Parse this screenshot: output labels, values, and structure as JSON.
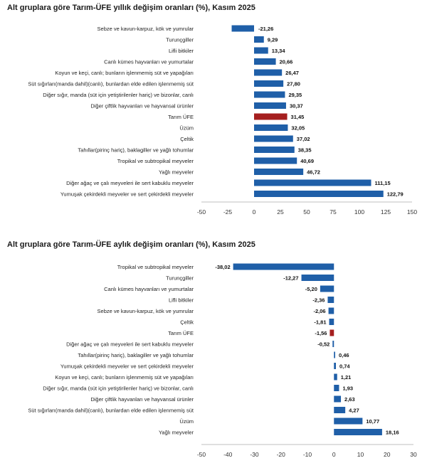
{
  "colors": {
    "bar": "#1f5fa8",
    "highlight": "#a51f1f",
    "axis": "#bfbfbf"
  },
  "chart_data": [
    {
      "type": "bar",
      "orientation": "horizontal",
      "title": "Alt gruplara göre Tarım-ÜFE yıllık değişim oranları (%), Kasım 2025",
      "categories": [
        "Sebze ve kavun-karpuz, kök ve yumrular",
        "Turunçgiller",
        "Lifli bitkiler",
        "Canlı kümes hayvanları ve yumurtalar",
        "Koyun ve keçi, canlı; bunların işlenmemiş süt ve yapağıları",
        "Süt sığırları(manda dahil)(canlı), bunlardan elde edilen işlenmemiş süt",
        "Diğer sığır, manda (süt için yetiştirilenler hariç) ve bizonlar, canlı",
        "Diğer çiftlik hayvanları ve hayvansal ürünler",
        "Tarım ÜFE",
        "Üzüm",
        "Çeltik",
        "Tahıllar(pirinç hariç), baklagiller ve yağlı tohumlar",
        "Tropikal ve subtropikal meyveler",
        "Yağlı meyveler",
        "Diğer ağaç ve çalı meyveleri ile sert kabuklu meyveler",
        "Yumuşak çekirdekli meyveler ve sert çekirdekli meyveler"
      ],
      "values": [
        -21.26,
        9.29,
        13.34,
        20.66,
        26.47,
        27.8,
        29.35,
        30.37,
        31.45,
        32.05,
        37.02,
        38.35,
        40.69,
        46.72,
        111.15,
        122.79
      ],
      "value_labels": [
        "-21,26",
        "9,29",
        "13,34",
        "20,66",
        "26,47",
        "27,80",
        "29,35",
        "30,37",
        "31,45",
        "32,05",
        "37,02",
        "38,35",
        "40,69",
        "46,72",
        "111,15",
        "122,79"
      ],
      "highlight": "Tarım ÜFE",
      "xlim": [
        -50,
        150
      ],
      "xticks": [
        -50,
        -25,
        0,
        25,
        50,
        75,
        100,
        125,
        150
      ]
    },
    {
      "type": "bar",
      "orientation": "horizontal",
      "title": "Alt gruplara göre Tarım-ÜFE aylık değişim oranları (%), Kasım 2025",
      "categories": [
        "Tropikal ve subtropikal meyveler",
        "Turunçgiller",
        "Canlı kümes hayvanları ve yumurtalar",
        "Lifli bitkiler",
        "Sebze ve kavun-karpuz, kök ve yumrular",
        "Çeltik",
        "Tarım ÜFE",
        "Diğer ağaç ve çalı meyveleri ile sert kabuklu meyveler",
        "Tahıllar(pirinç hariç), baklagiller ve yağlı tohumlar",
        "Yumuşak çekirdekli meyveler ve sert çekirdekli meyveler",
        "Koyun ve keçi, canlı; bunların işlenmemiş süt ve yapağıları",
        "Diğer sığır, manda (süt için yetiştirilenler hariç) ve bizonlar, canlı",
        "Diğer çiftlik hayvanları ve hayvansal ürünler",
        "Süt sığırları(manda dahil)(canlı), bunlardan elde edilen işlenmemiş süt",
        "Üzüm",
        "Yağlı meyveler"
      ],
      "values": [
        -38.02,
        -12.27,
        -5.2,
        -2.36,
        -2.06,
        -1.81,
        -1.56,
        -0.52,
        0.46,
        0.74,
        1.21,
        1.93,
        2.63,
        4.27,
        10.77,
        18.16
      ],
      "value_labels": [
        "-38,02",
        "-12,27",
        "-5,20",
        "-2,36",
        "-2,06",
        "-1,81",
        "-1,56",
        "-0,52",
        "0,46",
        "0,74",
        "1,21",
        "1,93",
        "2,63",
        "4,27",
        "10,77",
        "18,16"
      ],
      "highlight": "Tarım ÜFE",
      "xlim": [
        -50,
        30
      ],
      "xticks": [
        -50,
        -40,
        -30,
        -20,
        -10,
        0,
        10,
        20,
        30
      ]
    }
  ]
}
